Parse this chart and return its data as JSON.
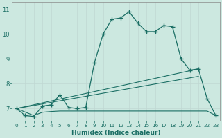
{
  "xlabel": "Humidex (Indice chaleur)",
  "bg_color": "#cce8e0",
  "grid_color_major": "#b8d8d0",
  "grid_color_minor": "#d8ece8",
  "line_color": "#1a6e64",
  "xlim": [
    -0.5,
    23.5
  ],
  "ylim": [
    6.5,
    11.3
  ],
  "xticks": [
    0,
    1,
    2,
    3,
    4,
    5,
    6,
    7,
    8,
    9,
    10,
    11,
    12,
    13,
    14,
    15,
    16,
    17,
    18,
    19,
    20,
    21,
    22,
    23
  ],
  "yticks": [
    7,
    8,
    9,
    10,
    11
  ],
  "curve_x": [
    0,
    1,
    2,
    3,
    4,
    5,
    6,
    7,
    8,
    9,
    10,
    11,
    12,
    13,
    14,
    15,
    16,
    17,
    18,
    19,
    20,
    21,
    22,
    23
  ],
  "curve_y": [
    7.0,
    6.72,
    6.68,
    7.1,
    7.15,
    7.55,
    7.05,
    7.0,
    7.05,
    8.85,
    10.0,
    10.6,
    10.65,
    10.9,
    10.45,
    10.1,
    10.1,
    10.35,
    10.3,
    9.0,
    8.55,
    8.6,
    7.4,
    6.72
  ],
  "trend1_x": [
    0,
    21
  ],
  "trend1_y": [
    7.0,
    8.6
  ],
  "trend2_x": [
    0,
    21
  ],
  "trend2_y": [
    7.0,
    8.3
  ],
  "flat_x": [
    0,
    2,
    3,
    4,
    5,
    6,
    7,
    8,
    9,
    10,
    11,
    12,
    13,
    14,
    15,
    16,
    17,
    18,
    19,
    20,
    21,
    22,
    23
  ],
  "flat_y": [
    7.0,
    6.72,
    6.85,
    6.88,
    6.9,
    6.9,
    6.9,
    6.9,
    6.9,
    6.9,
    6.9,
    6.9,
    6.9,
    6.9,
    6.9,
    6.9,
    6.9,
    6.9,
    6.9,
    6.9,
    6.9,
    6.9,
    6.72
  ]
}
